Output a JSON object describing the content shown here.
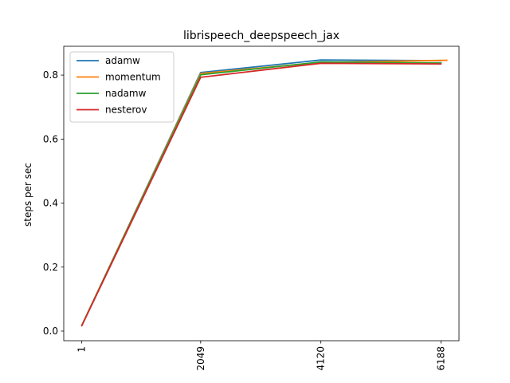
{
  "chart_data": {
    "type": "line",
    "title": "librispeech_deepspeech_jax",
    "xlabel": "",
    "ylabel": "steps per sec",
    "x": [
      1,
      2049,
      4120,
      6188
    ],
    "x_tick_labels": [
      "1",
      "2049",
      "4120",
      "6188"
    ],
    "ylim": [
      -0.03,
      0.89
    ],
    "y_ticks": [
      0.0,
      0.2,
      0.4,
      0.6,
      0.8
    ],
    "y_tick_labels": [
      "0.0",
      "0.2",
      "0.4",
      "0.6",
      "0.8"
    ],
    "grid": false,
    "legend_position": "upper left",
    "series": [
      {
        "name": "adamw",
        "color": "#1f77b4",
        "points": [
          [
            1,
            0.018
          ],
          [
            2049,
            0.808
          ],
          [
            4120,
            0.847
          ],
          [
            6188,
            0.845
          ]
        ]
      },
      {
        "name": "momentum",
        "color": "#ff7f0e",
        "points": [
          [
            1,
            0.018
          ],
          [
            2049,
            0.805
          ],
          [
            4120,
            0.84
          ],
          [
            6290,
            0.846
          ]
        ]
      },
      {
        "name": "nadamw",
        "color": "#2ca02c",
        "points": [
          [
            1,
            0.018
          ],
          [
            2049,
            0.801
          ],
          [
            4120,
            0.841
          ],
          [
            6188,
            0.838
          ]
        ]
      },
      {
        "name": "nesterov",
        "color": "#d62728",
        "points": [
          [
            1,
            0.017
          ],
          [
            2049,
            0.793
          ],
          [
            4120,
            0.837
          ],
          [
            6188,
            0.835
          ]
        ]
      }
    ]
  }
}
